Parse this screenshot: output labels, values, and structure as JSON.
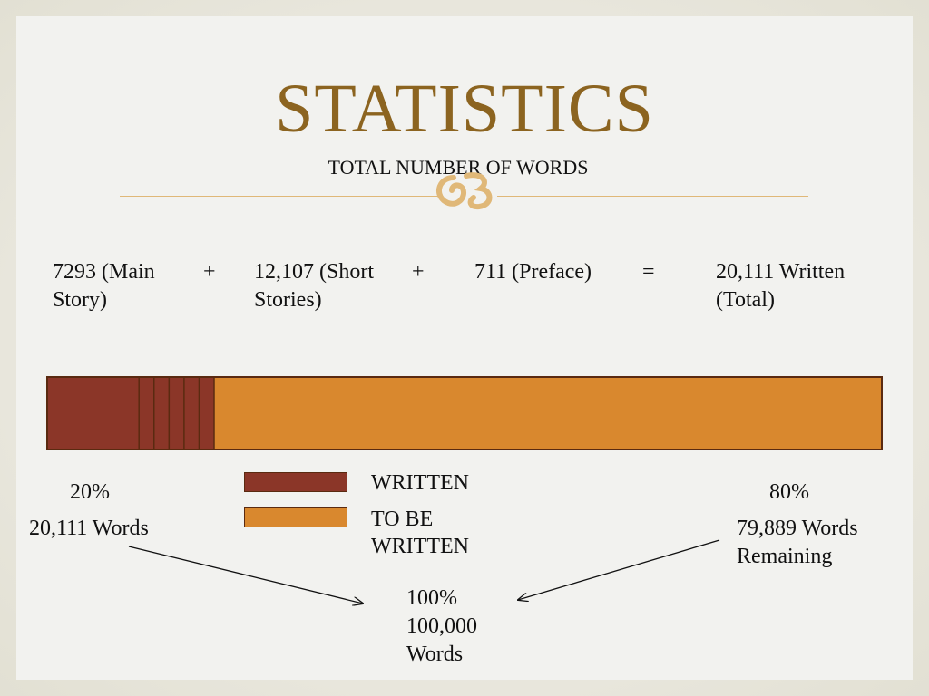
{
  "slide": {
    "title": "STATISTICS",
    "subtitle": "TOTAL NUMBER OF WORDS",
    "flourish_icon": "ornament-flourish-icon"
  },
  "equation": {
    "term1": "7293 (Main Story)",
    "op1": "+",
    "term2": "12,107 (Short Stories)",
    "op2": "+",
    "term3": "711 (Preface)",
    "op3": "=",
    "result": "20,111 Written (Total)"
  },
  "legend": {
    "written_label": "WRITTEN",
    "to_be_written_label": "TO BE WRITTEN"
  },
  "stats": {
    "left_percent": "20%",
    "left_words": "20,111 Words",
    "right_percent": "80%",
    "right_words": "79,889 Words Remaining",
    "total_percent": "100%",
    "total_words": "100,000 Words"
  },
  "colors": {
    "written": "#8b3628",
    "to_be_written": "#d9882e",
    "border": "#5a2a10",
    "title": "#8c6420",
    "accent": "#e0b878"
  },
  "chart_data": {
    "type": "bar",
    "orientation": "horizontal-stacked",
    "series": [
      {
        "name": "WRITTEN",
        "values": [
          20
        ]
      },
      {
        "name": "TO BE WRITTEN",
        "values": [
          80
        ]
      }
    ],
    "xlim": [
      0,
      100
    ],
    "units": "percent"
  }
}
